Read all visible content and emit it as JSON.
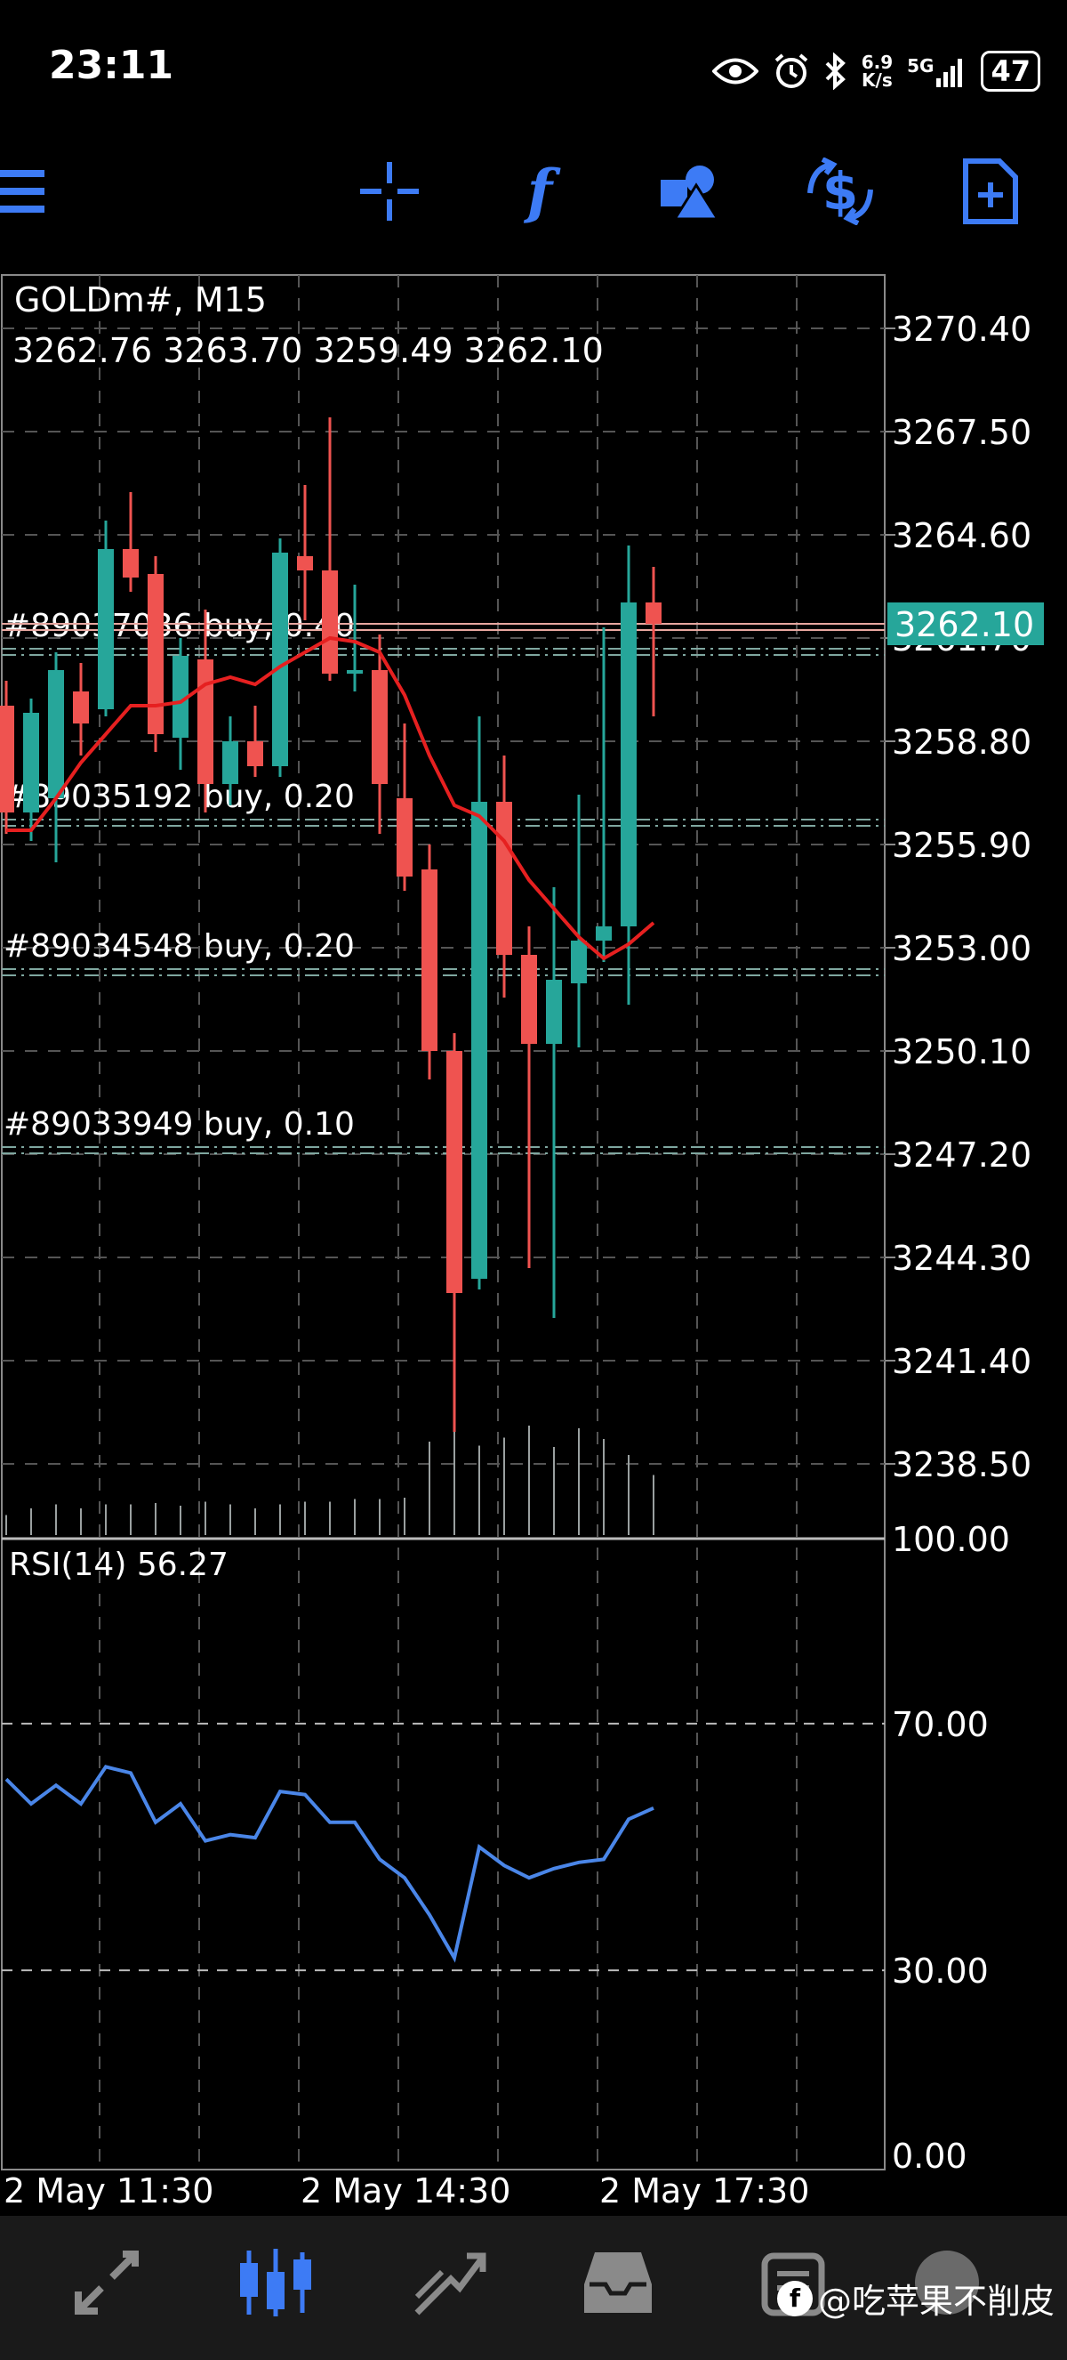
{
  "status_bar": {
    "time": "23:11",
    "net_speed_top": "6.9",
    "net_speed_bottom": "K/s",
    "network": "5G",
    "battery": "47"
  },
  "toolbar": {
    "items": [
      {
        "name": "crosshair-icon"
      },
      {
        "name": "indicators-icon",
        "glyph": "f"
      },
      {
        "name": "objects-icon"
      },
      {
        "name": "trade-icon"
      },
      {
        "name": "new-order-icon"
      }
    ],
    "menu_icon": "menu-icon",
    "accent": "#3d7bf5"
  },
  "chart": {
    "symbol_label": "GOLDm#, M15",
    "ohlc_label": "3262.76 3263.70 3259.49 3262.10",
    "current_price_label": "3262.10",
    "rsi_label": "RSI(14) 56.27",
    "orders": [
      {
        "text": "#89037036 buy, 0.40",
        "price": 3261.4
      },
      {
        "text": "#89035192 buy, 0.20",
        "price": 3256.6
      },
      {
        "text": "#89034548 buy, 0.20",
        "price": 3252.4
      },
      {
        "text": "#89033949 buy, 0.10",
        "price": 3247.4
      }
    ],
    "price_ticks": [
      "3270.40",
      "3267.50",
      "3264.60",
      "3261.70",
      "3258.80",
      "3255.90",
      "3253.00",
      "3250.10",
      "3247.20",
      "3244.30",
      "3241.40",
      "3238.50"
    ],
    "rsi_ticks": [
      "100.00",
      "70.00",
      "30.00",
      "0.00"
    ],
    "time_ticks": [
      "2 May 11:30",
      "2 May 14:30",
      "2 May 17:30"
    ],
    "colors": {
      "bull": "#26a69a",
      "bear": "#ef5350",
      "ma": "#e62020",
      "rsi": "#4a86e8",
      "grid": "#555555"
    }
  },
  "chart_data": {
    "type": "candlestick",
    "price_range": [
      3236.5,
      3271.9
    ],
    "rsi_range": [
      0,
      100
    ],
    "candles": [
      {
        "o": 3259.8,
        "h": 3260.5,
        "l": 3256.2,
        "c": 3256.8
      },
      {
        "o": 3256.8,
        "h": 3260.0,
        "l": 3256.0,
        "c": 3259.6
      },
      {
        "o": 3257.2,
        "h": 3261.3,
        "l": 3255.4,
        "c": 3260.8
      },
      {
        "o": 3260.2,
        "h": 3261.0,
        "l": 3258.4,
        "c": 3259.3
      },
      {
        "o": 3259.7,
        "h": 3265.0,
        "l": 3259.5,
        "c": 3264.2
      },
      {
        "o": 3264.2,
        "h": 3265.8,
        "l": 3263.0,
        "c": 3263.4
      },
      {
        "o": 3263.5,
        "h": 3264.0,
        "l": 3258.5,
        "c": 3259.0
      },
      {
        "o": 3258.9,
        "h": 3261.7,
        "l": 3258.0,
        "c": 3261.2
      },
      {
        "o": 3261.1,
        "h": 3262.5,
        "l": 3256.8,
        "c": 3257.6
      },
      {
        "o": 3257.6,
        "h": 3259.5,
        "l": 3257.0,
        "c": 3258.8
      },
      {
        "o": 3258.8,
        "h": 3259.8,
        "l": 3257.8,
        "c": 3258.1
      },
      {
        "o": 3258.1,
        "h": 3264.5,
        "l": 3257.8,
        "c": 3264.1
      },
      {
        "o": 3264.0,
        "h": 3266.0,
        "l": 3262.2,
        "c": 3263.6
      },
      {
        "o": 3263.6,
        "h": 3267.9,
        "l": 3260.5,
        "c": 3260.7
      },
      {
        "o": 3260.7,
        "h": 3263.2,
        "l": 3260.2,
        "c": 3260.8
      },
      {
        "o": 3260.8,
        "h": 3261.8,
        "l": 3256.2,
        "c": 3257.6
      },
      {
        "o": 3257.2,
        "h": 3259.3,
        "l": 3254.6,
        "c": 3255.0
      },
      {
        "o": 3255.2,
        "h": 3255.9,
        "l": 3249.3,
        "c": 3250.1
      },
      {
        "o": 3250.1,
        "h": 3250.6,
        "l": 3239.4,
        "c": 3243.3
      },
      {
        "o": 3243.7,
        "h": 3259.5,
        "l": 3243.4,
        "c": 3257.1
      },
      {
        "o": 3257.1,
        "h": 3258.4,
        "l": 3251.6,
        "c": 3252.8
      },
      {
        "o": 3252.8,
        "h": 3253.6,
        "l": 3244.0,
        "c": 3250.3
      },
      {
        "o": 3250.3,
        "h": 3254.7,
        "l": 3242.6,
        "c": 3252.1
      },
      {
        "o": 3252.0,
        "h": 3257.3,
        "l": 3250.2,
        "c": 3253.2
      },
      {
        "o": 3253.2,
        "h": 3262.0,
        "l": 3252.6,
        "c": 3253.6
      },
      {
        "o": 3253.6,
        "h": 3264.3,
        "l": 3251.4,
        "c": 3262.7
      },
      {
        "o": 3262.7,
        "h": 3263.7,
        "l": 3259.5,
        "c": 3262.1
      }
    ],
    "moving_average": [
      3256.3,
      3256.3,
      3257.2,
      3258.2,
      3259.0,
      3259.8,
      3259.8,
      3259.9,
      3260.4,
      3260.6,
      3260.4,
      3260.9,
      3261.3,
      3261.7,
      3261.6,
      3261.3,
      3260.1,
      3258.4,
      3257.0,
      3256.7,
      3256.0,
      3254.9,
      3254.1,
      3253.3,
      3252.7,
      3253.1,
      3253.7
    ],
    "volumes": [
      0.15,
      0.2,
      0.23,
      0.2,
      0.23,
      0.23,
      0.24,
      0.22,
      0.25,
      0.23,
      0.2,
      0.23,
      0.25,
      0.25,
      0.27,
      0.27,
      0.28,
      0.7,
      0.82,
      0.67,
      0.73,
      0.82,
      0.66,
      0.8,
      0.72,
      0.6,
      0.45
    ],
    "rsi": [
      61,
      57,
      60,
      57,
      63,
      62,
      54,
      57,
      51,
      52,
      51.5,
      59,
      58.5,
      54,
      54,
      48,
      45,
      39,
      32,
      50,
      47,
      45,
      46.5,
      47.5,
      48,
      54.5,
      56.3
    ],
    "rsi_levels": [
      70,
      30
    ]
  },
  "bottom_nav": {
    "items": [
      {
        "name": "quotes-icon"
      },
      {
        "name": "chart-icon"
      },
      {
        "name": "trade-nav-icon"
      },
      {
        "name": "history-icon"
      },
      {
        "name": "messages-icon"
      }
    ],
    "active": 1
  },
  "watermark": {
    "logo": "f",
    "text": "@吃苹果不削皮"
  }
}
